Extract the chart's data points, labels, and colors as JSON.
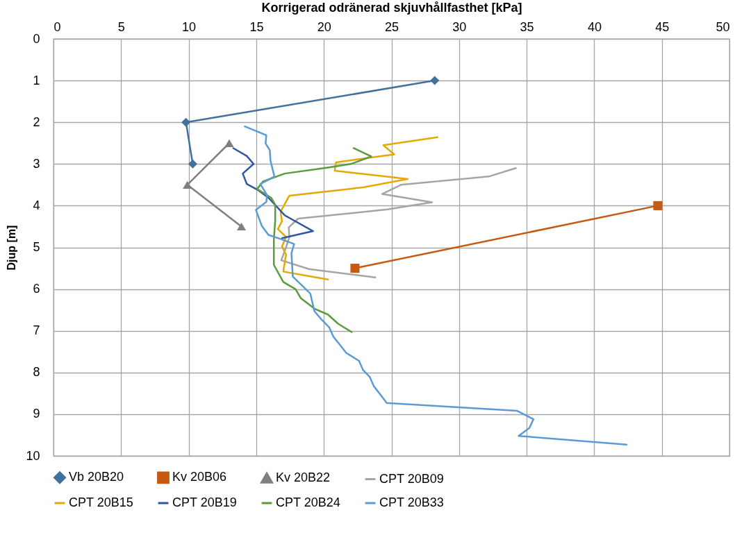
{
  "chart_data": {
    "type": "line",
    "xlabel": "Korrigerad odränerad skjuvhållfasthet [kPa]",
    "ylabel": "Djup [m]",
    "xlim": [
      0,
      50
    ],
    "xticks": [
      0,
      5,
      10,
      15,
      20,
      25,
      30,
      35,
      40,
      45,
      50
    ],
    "ylim": [
      10,
      0
    ],
    "yticks": [
      0,
      1,
      2,
      3,
      4,
      5,
      6,
      7,
      8,
      9,
      10
    ],
    "grid": true,
    "legend": "bottom",
    "series": [
      {
        "name": "Vb 20B20",
        "color": "#41719c",
        "marker": "diamond",
        "x": [
          28.2,
          9.8,
          10.3
        ],
        "values": [
          1,
          2,
          3
        ]
      },
      {
        "name": "Kv 20B06",
        "color": "#c55a11",
        "marker": "square",
        "x": [
          44.7,
          22.3
        ],
        "values": [
          4,
          5.5
        ]
      },
      {
        "name": "Kv 20B22",
        "color": "#7f7f7f",
        "marker": "triangle",
        "x": [
          13,
          9.9,
          13.9
        ],
        "values": [
          2.5,
          3.5,
          4.5
        ]
      },
      {
        "name": "CPT 20B09",
        "color": "#a5a5a5",
        "marker": "none",
        "x": [
          34.2,
          32.2,
          25.7,
          24.3,
          28.0,
          24.7,
          18.1,
          17.4,
          17.45,
          17.2,
          16.85,
          18.9,
          23.8
        ],
        "values": [
          3.1,
          3.3,
          3.5,
          3.72,
          3.92,
          4.09,
          4.31,
          4.52,
          4.75,
          5.0,
          5.31,
          5.52,
          5.72
        ]
      },
      {
        "name": "CPT 20B15",
        "color": "#e6a800",
        "marker": "none",
        "x": [
          28.4,
          24.4,
          25.2,
          20.9,
          20.8,
          26.2,
          22.9,
          17.45,
          16.8,
          16.9,
          16.6,
          17.2,
          16.9,
          17.2,
          17.0,
          20.3
        ],
        "values": [
          2.36,
          2.55,
          2.77,
          2.96,
          3.16,
          3.36,
          3.56,
          3.76,
          4.14,
          4.37,
          4.56,
          4.75,
          4.98,
          5.17,
          5.58,
          5.77
        ]
      },
      {
        "name": "CPT 20B19",
        "color": "#2f55a4",
        "marker": "none",
        "x": [
          13.3,
          14.3,
          14.8,
          14.0,
          14.3,
          15.1,
          15.9,
          17.1,
          19.2,
          16.9
        ],
        "values": [
          2.62,
          2.81,
          3.0,
          3.23,
          3.48,
          3.62,
          3.81,
          4.23,
          4.61,
          4.78
        ]
      },
      {
        "name": "CPT 20B24",
        "color": "#5b9b3c",
        "marker": "none",
        "x": [
          22.2,
          23.5,
          22.0,
          20.2,
          17.1,
          15.5,
          15.06,
          16.1,
          16.4,
          16.4,
          16.3,
          16.3,
          17.0,
          17.9,
          18.3,
          19.3,
          20.3,
          21.05,
          22.05
        ],
        "values": [
          2.62,
          2.82,
          3.0,
          3.09,
          3.23,
          3.42,
          3.6,
          3.81,
          3.98,
          4.36,
          4.81,
          5.42,
          5.83,
          6.0,
          6.22,
          6.47,
          6.61,
          6.83,
          7.03
        ]
      },
      {
        "name": "CPT 20B33",
        "color": "#5b9bd5",
        "marker": "none",
        "x": [
          14.15,
          15.74,
          15.69,
          16.0,
          16.05,
          16.34,
          15.3,
          15.8,
          15.74,
          14.97,
          15.4,
          15.9,
          16.9,
          17.8,
          17.6,
          17.7,
          18.5,
          19.0,
          19.3,
          19.8,
          20.4,
          20.7,
          21.1,
          21.65,
          22.6,
          22.9,
          23.4,
          23.7,
          24.3,
          24.65,
          34.3,
          35.5,
          35.2,
          34.4,
          42.4
        ],
        "values": [
          2.1,
          2.31,
          2.51,
          2.67,
          2.92,
          3.3,
          3.48,
          3.75,
          3.91,
          4.1,
          4.48,
          4.7,
          4.81,
          4.92,
          5.14,
          5.7,
          5.95,
          6.11,
          6.53,
          6.72,
          6.92,
          7.14,
          7.3,
          7.53,
          7.72,
          7.94,
          8.11,
          8.33,
          8.58,
          8.73,
          8.92,
          9.12,
          9.33,
          9.52,
          9.73
        ]
      }
    ]
  }
}
